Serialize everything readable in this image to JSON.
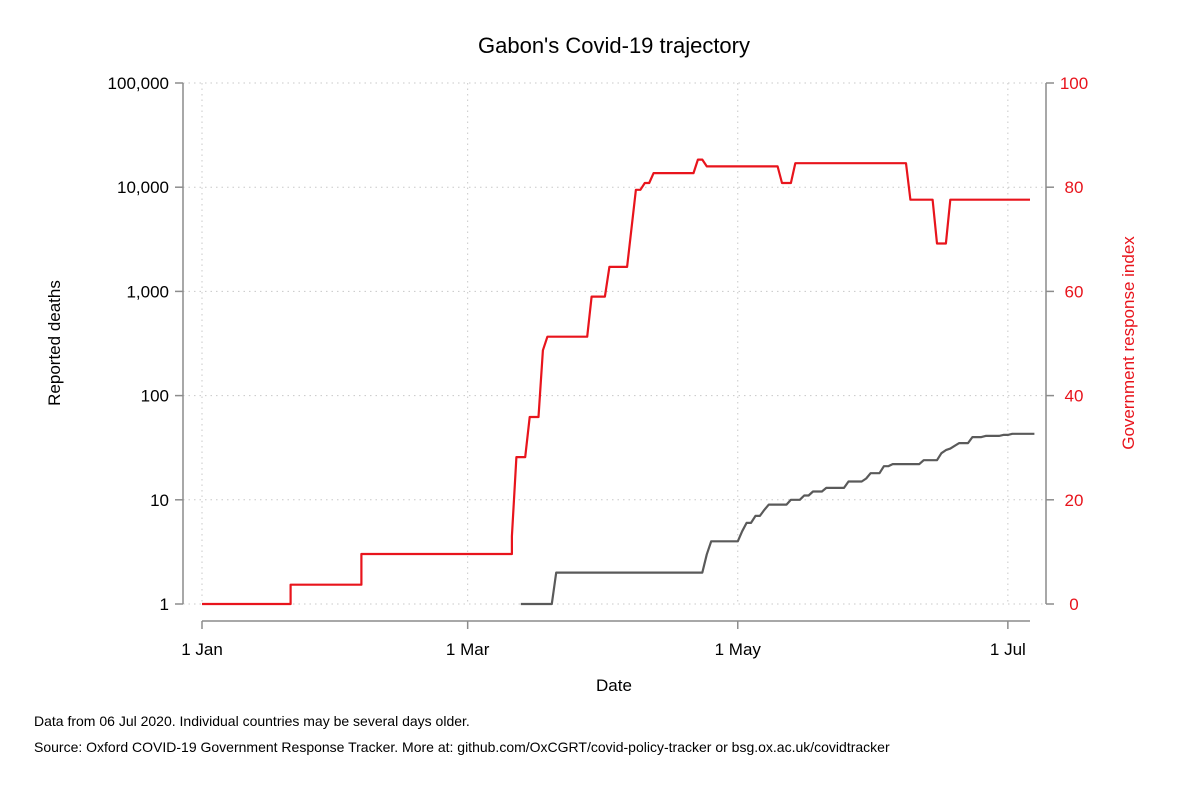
{
  "chart_data": {
    "type": "line",
    "title": "Gabon's Covid-19 trajectory",
    "xlabel": "Date",
    "ylabel_left": "Reported deaths",
    "ylabel_right": "Government response index",
    "x_ticks": [
      {
        "label": "1 Jan",
        "date": "2020-01-01"
      },
      {
        "label": "1 Mar",
        "date": "2020-03-01"
      },
      {
        "label": "1 May",
        "date": "2020-05-01"
      },
      {
        "label": "1 Jul",
        "date": "2020-07-01"
      }
    ],
    "x_range": [
      "2020-01-01",
      "2020-07-06"
    ],
    "y_left_scale": "log",
    "y_left_range": [
      1,
      100000
    ],
    "y_left_ticks": [
      {
        "label": "1",
        "value": 1
      },
      {
        "label": "10",
        "value": 10
      },
      {
        "label": "100",
        "value": 100
      },
      {
        "label": "1,000",
        "value": 1000
      },
      {
        "label": "10,000",
        "value": 10000
      },
      {
        "label": "100,000",
        "value": 100000
      }
    ],
    "y_right_range": [
      0,
      100
    ],
    "y_right_ticks": [
      {
        "label": "0",
        "value": 0
      },
      {
        "label": "20",
        "value": 20
      },
      {
        "label": "40",
        "value": 40
      },
      {
        "label": "60",
        "value": 60
      },
      {
        "label": "80",
        "value": 80
      },
      {
        "label": "100",
        "value": 100
      }
    ],
    "grid": true,
    "series": [
      {
        "axis": "left",
        "color": "#5a5a5a",
        "points": [
          [
            "2020-03-13",
            1
          ],
          [
            "2020-03-20",
            1
          ],
          [
            "2020-03-21",
            2
          ],
          [
            "2020-04-23",
            2
          ],
          [
            "2020-04-24",
            3
          ],
          [
            "2020-04-25",
            4
          ],
          [
            "2020-05-01",
            4
          ],
          [
            "2020-05-02",
            5
          ],
          [
            "2020-05-03",
            6
          ],
          [
            "2020-05-04",
            6
          ],
          [
            "2020-05-05",
            7
          ],
          [
            "2020-05-06",
            7
          ],
          [
            "2020-05-07",
            8
          ],
          [
            "2020-05-08",
            9
          ],
          [
            "2020-05-12",
            9
          ],
          [
            "2020-05-13",
            10
          ],
          [
            "2020-05-15",
            10
          ],
          [
            "2020-05-16",
            11
          ],
          [
            "2020-05-17",
            11
          ],
          [
            "2020-05-18",
            12
          ],
          [
            "2020-05-20",
            12
          ],
          [
            "2020-05-21",
            13
          ],
          [
            "2020-05-25",
            13
          ],
          [
            "2020-05-26",
            15
          ],
          [
            "2020-05-29",
            15
          ],
          [
            "2020-05-30",
            16
          ],
          [
            "2020-05-31",
            18
          ],
          [
            "2020-06-02",
            18
          ],
          [
            "2020-06-03",
            21
          ],
          [
            "2020-06-04",
            21
          ],
          [
            "2020-06-05",
            22
          ],
          [
            "2020-06-11",
            22
          ],
          [
            "2020-06-12",
            24
          ],
          [
            "2020-06-15",
            24
          ],
          [
            "2020-06-16",
            28
          ],
          [
            "2020-06-17",
            30
          ],
          [
            "2020-06-18",
            31
          ],
          [
            "2020-06-19",
            33
          ],
          [
            "2020-06-20",
            35
          ],
          [
            "2020-06-22",
            35
          ],
          [
            "2020-06-23",
            40
          ],
          [
            "2020-06-25",
            40
          ],
          [
            "2020-06-26",
            41
          ],
          [
            "2020-06-29",
            41
          ],
          [
            "2020-06-30",
            42
          ],
          [
            "2020-07-01",
            42
          ],
          [
            "2020-07-02",
            43
          ],
          [
            "2020-07-07",
            43
          ]
        ]
      },
      {
        "axis": "right",
        "color": "#e8141c",
        "points": [
          [
            "2020-01-01",
            0
          ],
          [
            "2020-01-21",
            0
          ],
          [
            "2020-01-21",
            3.7
          ],
          [
            "2020-02-06",
            3.7
          ],
          [
            "2020-02-06",
            9.6
          ],
          [
            "2020-03-11",
            9.6
          ],
          [
            "2020-03-11",
            13
          ],
          [
            "2020-03-12",
            28.2
          ],
          [
            "2020-03-14",
            28.2
          ],
          [
            "2020-03-15",
            35.9
          ],
          [
            "2020-03-17",
            35.9
          ],
          [
            "2020-03-18",
            48.7
          ],
          [
            "2020-03-19",
            51.3
          ],
          [
            "2020-03-28",
            51.3
          ],
          [
            "2020-03-29",
            59
          ],
          [
            "2020-04-01",
            59
          ],
          [
            "2020-04-02",
            64.7
          ],
          [
            "2020-04-06",
            64.7
          ],
          [
            "2020-04-08",
            79.5
          ],
          [
            "2020-04-09",
            79.5
          ],
          [
            "2020-04-10",
            80.8
          ],
          [
            "2020-04-11",
            80.8
          ],
          [
            "2020-04-12",
            82.7
          ],
          [
            "2020-04-21",
            82.7
          ],
          [
            "2020-04-22",
            85.3
          ],
          [
            "2020-04-23",
            85.3
          ],
          [
            "2020-04-24",
            84
          ],
          [
            "2020-05-10",
            84
          ],
          [
            "2020-05-11",
            80.8
          ],
          [
            "2020-05-13",
            80.8
          ],
          [
            "2020-05-14",
            84.6
          ],
          [
            "2020-06-08",
            84.6
          ],
          [
            "2020-06-09",
            77.6
          ],
          [
            "2020-06-14",
            77.6
          ],
          [
            "2020-06-15",
            69.2
          ],
          [
            "2020-06-17",
            69.2
          ],
          [
            "2020-06-18",
            77.6
          ],
          [
            "2020-07-06",
            77.6
          ]
        ]
      }
    ]
  },
  "footnotes": {
    "note": "Data from 06 Jul 2020. Individual countries may be several days older.",
    "source": "Source: Oxford COVID-19 Government Response Tracker. More at: github.com/OxCGRT/covid-policy-tracker or bsg.ox.ac.uk/covidtracker"
  }
}
